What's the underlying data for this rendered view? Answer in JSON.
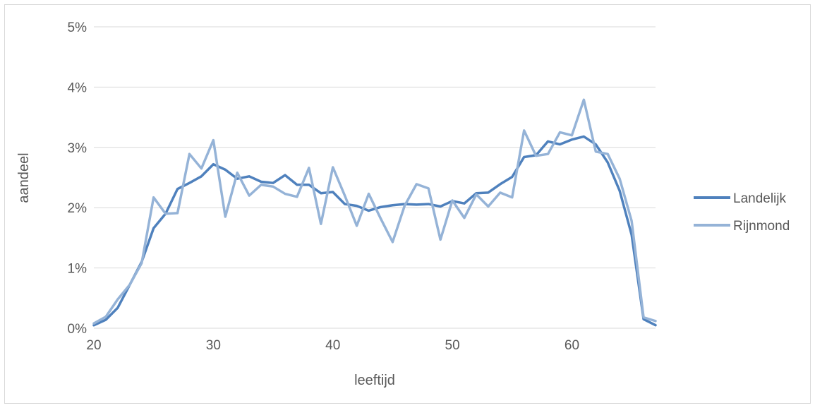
{
  "chart_data": {
    "type": "line",
    "title": "",
    "xlabel": "leeftijd",
    "ylabel": "aandeel",
    "xlim": [
      20,
      67
    ],
    "ylim": [
      0,
      5
    ],
    "x_ticks": [
      20,
      30,
      40,
      50,
      60
    ],
    "x_tick_labels": [
      "20",
      "30",
      "40",
      "50",
      "60"
    ],
    "y_ticks": [
      0,
      1,
      2,
      3,
      4,
      5
    ],
    "y_tick_labels": [
      "0%",
      "1%",
      "2%",
      "3%",
      "4%",
      "5%"
    ],
    "grid": "horizontal",
    "legend_position": "right",
    "x": [
      20,
      21,
      22,
      23,
      24,
      25,
      26,
      27,
      28,
      29,
      30,
      31,
      32,
      33,
      34,
      35,
      36,
      37,
      38,
      39,
      40,
      41,
      42,
      43,
      44,
      45,
      46,
      47,
      48,
      49,
      50,
      51,
      52,
      53,
      54,
      55,
      56,
      57,
      58,
      59,
      60,
      61,
      62,
      63,
      64,
      65,
      66,
      67
    ],
    "series": [
      {
        "name": "Landelijk",
        "color": "#4f81bd",
        "values": [
          0.05,
          0.14,
          0.34,
          0.72,
          1.1,
          1.66,
          1.9,
          2.31,
          2.41,
          2.52,
          2.72,
          2.63,
          2.48,
          2.52,
          2.43,
          2.41,
          2.54,
          2.38,
          2.38,
          2.24,
          2.26,
          2.06,
          2.03,
          1.95,
          2.01,
          2.04,
          2.06,
          2.05,
          2.06,
          2.02,
          2.11,
          2.07,
          2.24,
          2.25,
          2.39,
          2.51,
          2.84,
          2.87,
          3.1,
          3.05,
          3.13,
          3.18,
          3.05,
          2.75,
          2.28,
          1.55,
          0.15,
          0.05
        ]
      },
      {
        "name": "Rijnmond",
        "color": "#95b3d7",
        "values": [
          0.08,
          0.19,
          0.48,
          0.72,
          1.08,
          2.17,
          1.9,
          1.91,
          2.89,
          2.65,
          3.12,
          1.85,
          2.58,
          2.2,
          2.38,
          2.35,
          2.23,
          2.18,
          2.66,
          1.73,
          2.67,
          2.2,
          1.7,
          2.23,
          1.82,
          1.43,
          2.03,
          2.39,
          2.32,
          1.47,
          2.12,
          1.83,
          2.22,
          2.02,
          2.25,
          2.17,
          3.28,
          2.86,
          2.89,
          3.25,
          3.2,
          3.79,
          2.93,
          2.89,
          2.48,
          1.78,
          0.18,
          0.12
        ]
      }
    ]
  }
}
